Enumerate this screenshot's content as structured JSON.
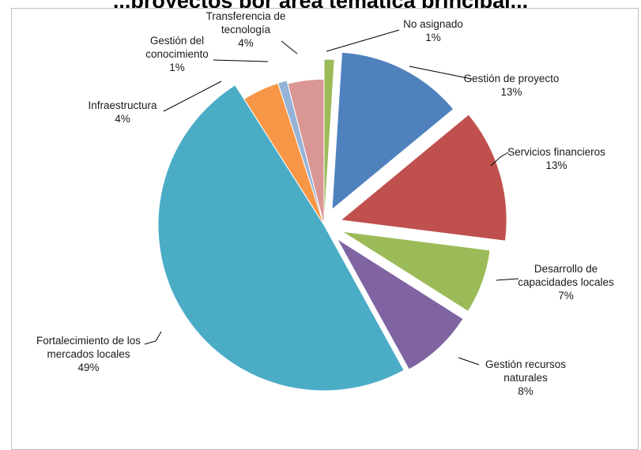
{
  "chart_data": {
    "type": "pie",
    "title": "...proyectos por área temática principal...",
    "slices": [
      {
        "label_lines": [
          "No asignado"
        ],
        "percent_label": "1%",
        "value": 1,
        "color": "#9BBB59"
      },
      {
        "label_lines": [
          "Gestión de proyecto"
        ],
        "percent_label": "13%",
        "value": 13,
        "color": "#4F81BD"
      },
      {
        "label_lines": [
          "Servicios financieros"
        ],
        "percent_label": "13%",
        "value": 13,
        "color": "#C0504D"
      },
      {
        "label_lines": [
          "Desarrollo de",
          "capacidades locales"
        ],
        "percent_label": "7%",
        "value": 7,
        "color": "#9BBB59"
      },
      {
        "label_lines": [
          "Gestión recursos",
          "naturales"
        ],
        "percent_label": "8%",
        "value": 8,
        "color": "#8064A2"
      },
      {
        "label_lines": [
          "Fortalecimiento de los",
          "mercados locales"
        ],
        "percent_label": "49%",
        "value": 49,
        "color": "#4BACC6"
      },
      {
        "label_lines": [
          "Infraestructura"
        ],
        "percent_label": "4%",
        "value": 4,
        "color": "#F79646"
      },
      {
        "label_lines": [
          "Gestión del",
          "conocimiento"
        ],
        "percent_label": "1%",
        "value": 1,
        "color": "#95B3D7"
      },
      {
        "label_lines": [
          "Transferencia de",
          "tecnología"
        ],
        "percent_label": "4%",
        "value": 4,
        "color": "#D99694"
      }
    ]
  }
}
